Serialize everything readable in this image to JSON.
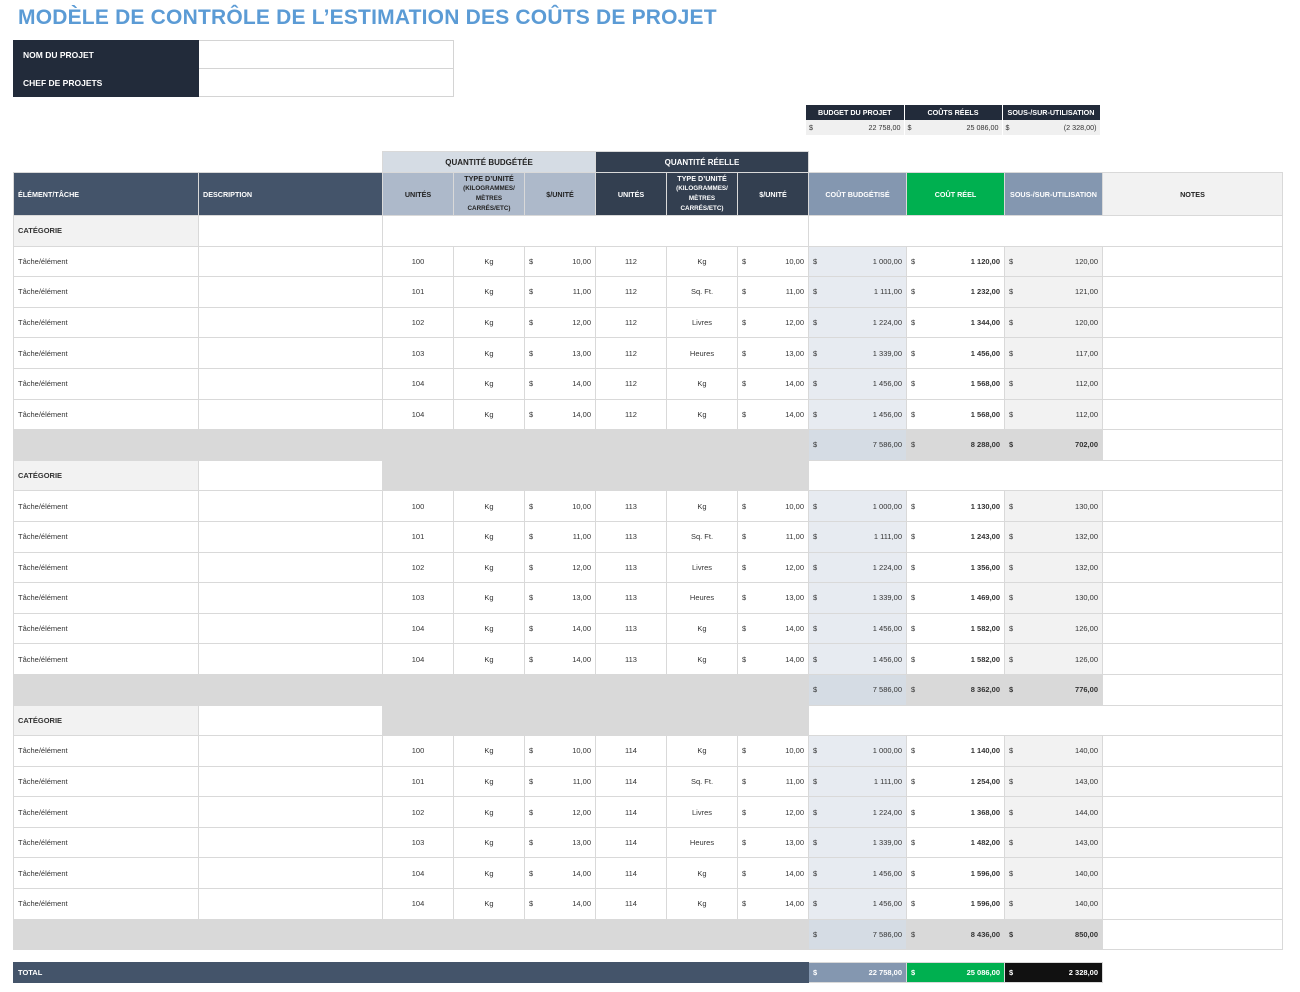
{
  "title": "MODÈLE DE CONTRÔLE DE L’ESTIMATION DES COÛTS DE PROJET",
  "project": {
    "name_label": "NOM DU PROJET",
    "name_value": "",
    "manager_label": "CHEF DE PROJETS",
    "manager_value": ""
  },
  "summary": {
    "headers": [
      "BUDGET DU PROJET",
      "COÛTS RÉELS",
      "SOUS-/SUR-UTILISATION"
    ],
    "currency": "$",
    "values": [
      "22 758,00",
      "25 086,00",
      "(2 328,00)"
    ]
  },
  "groups": {
    "budgeted": "QUANTITÉ BUDGÉTÉE",
    "actual": "QUANTITÉ RÉELLE"
  },
  "headers": {
    "item": "ÉLÉMENT/TÂCHE",
    "description": "DESCRIPTION",
    "units": "UNITÉS",
    "unit_type": "TYPE D’UNITÉ",
    "unit_type_sub": "(KILOGRAMMES/ MÈTRES CARRÉS/ETC)",
    "per_unit": "$/UNITÉ",
    "budget_cost": "COÛT BUDGÉTISÉ",
    "actual_cost": "COÛT RÉEL",
    "variance": "SOUS-/SUR-UTILISATION",
    "notes": "NOTES"
  },
  "currency_symbol": "$",
  "categories": [
    {
      "label": "CATÉGORIE",
      "rows": [
        {
          "item": "Tâche/élément",
          "b_units": "100",
          "b_type": "Kg",
          "b_price": "10,00",
          "a_units": "112",
          "a_type": "Kg",
          "a_price": "10,00",
          "budget": "1 000,00",
          "actual": "1 120,00",
          "variance": "120,00"
        },
        {
          "item": "Tâche/élément",
          "b_units": "101",
          "b_type": "Kg",
          "b_price": "11,00",
          "a_units": "112",
          "a_type": "Sq. Ft.",
          "a_price": "11,00",
          "budget": "1 111,00",
          "actual": "1 232,00",
          "variance": "121,00"
        },
        {
          "item": "Tâche/élément",
          "b_units": "102",
          "b_type": "Kg",
          "b_price": "12,00",
          "a_units": "112",
          "a_type": "Livres",
          "a_price": "12,00",
          "budget": "1 224,00",
          "actual": "1 344,00",
          "variance": "120,00"
        },
        {
          "item": "Tâche/élément",
          "b_units": "103",
          "b_type": "Kg",
          "b_price": "13,00",
          "a_units": "112",
          "a_type": "Heures",
          "a_price": "13,00",
          "budget": "1 339,00",
          "actual": "1 456,00",
          "variance": "117,00"
        },
        {
          "item": "Tâche/élément",
          "b_units": "104",
          "b_type": "Kg",
          "b_price": "14,00",
          "a_units": "112",
          "a_type": "Kg",
          "a_price": "14,00",
          "budget": "1 456,00",
          "actual": "1 568,00",
          "variance": "112,00"
        },
        {
          "item": "Tâche/élément",
          "b_units": "104",
          "b_type": "Kg",
          "b_price": "14,00",
          "a_units": "112",
          "a_type": "Kg",
          "a_price": "14,00",
          "budget": "1 456,00",
          "actual": "1 568,00",
          "variance": "112,00"
        }
      ],
      "subtotal": {
        "budget": "7 586,00",
        "actual": "8 288,00",
        "variance": "702,00"
      }
    },
    {
      "label": "CATÉGORIE",
      "rows": [
        {
          "item": "Tâche/élément",
          "b_units": "100",
          "b_type": "Kg",
          "b_price": "10,00",
          "a_units": "113",
          "a_type": "Kg",
          "a_price": "10,00",
          "budget": "1 000,00",
          "actual": "1 130,00",
          "variance": "130,00"
        },
        {
          "item": "Tâche/élément",
          "b_units": "101",
          "b_type": "Kg",
          "b_price": "11,00",
          "a_units": "113",
          "a_type": "Sq. Ft.",
          "a_price": "11,00",
          "budget": "1 111,00",
          "actual": "1 243,00",
          "variance": "132,00"
        },
        {
          "item": "Tâche/élément",
          "b_units": "102",
          "b_type": "Kg",
          "b_price": "12,00",
          "a_units": "113",
          "a_type": "Livres",
          "a_price": "12,00",
          "budget": "1 224,00",
          "actual": "1 356,00",
          "variance": "132,00"
        },
        {
          "item": "Tâche/élément",
          "b_units": "103",
          "b_type": "Kg",
          "b_price": "13,00",
          "a_units": "113",
          "a_type": "Heures",
          "a_price": "13,00",
          "budget": "1 339,00",
          "actual": "1 469,00",
          "variance": "130,00"
        },
        {
          "item": "Tâche/élément",
          "b_units": "104",
          "b_type": "Kg",
          "b_price": "14,00",
          "a_units": "113",
          "a_type": "Kg",
          "a_price": "14,00",
          "budget": "1 456,00",
          "actual": "1 582,00",
          "variance": "126,00"
        },
        {
          "item": "Tâche/élément",
          "b_units": "104",
          "b_type": "Kg",
          "b_price": "14,00",
          "a_units": "113",
          "a_type": "Kg",
          "a_price": "14,00",
          "budget": "1 456,00",
          "actual": "1 582,00",
          "variance": "126,00"
        }
      ],
      "subtotal": {
        "budget": "7 586,00",
        "actual": "8 362,00",
        "variance": "776,00"
      }
    },
    {
      "label": "CATÉGORIE",
      "rows": [
        {
          "item": "Tâche/élément",
          "b_units": "100",
          "b_type": "Kg",
          "b_price": "10,00",
          "a_units": "114",
          "a_type": "Kg",
          "a_price": "10,00",
          "budget": "1 000,00",
          "actual": "1 140,00",
          "variance": "140,00"
        },
        {
          "item": "Tâche/élément",
          "b_units": "101",
          "b_type": "Kg",
          "b_price": "11,00",
          "a_units": "114",
          "a_type": "Sq. Ft.",
          "a_price": "11,00",
          "budget": "1 111,00",
          "actual": "1 254,00",
          "variance": "143,00"
        },
        {
          "item": "Tâche/élément",
          "b_units": "102",
          "b_type": "Kg",
          "b_price": "12,00",
          "a_units": "114",
          "a_type": "Livres",
          "a_price": "12,00",
          "budget": "1 224,00",
          "actual": "1 368,00",
          "variance": "144,00"
        },
        {
          "item": "Tâche/élément",
          "b_units": "103",
          "b_type": "Kg",
          "b_price": "13,00",
          "a_units": "114",
          "a_type": "Heures",
          "a_price": "13,00",
          "budget": "1 339,00",
          "actual": "1 482,00",
          "variance": "143,00"
        },
        {
          "item": "Tâche/élément",
          "b_units": "104",
          "b_type": "Kg",
          "b_price": "14,00",
          "a_units": "114",
          "a_type": "Kg",
          "a_price": "14,00",
          "budget": "1 456,00",
          "actual": "1 596,00",
          "variance": "140,00"
        },
        {
          "item": "Tâche/élément",
          "b_units": "104",
          "b_type": "Kg",
          "b_price": "14,00",
          "a_units": "114",
          "a_type": "Kg",
          "a_price": "14,00",
          "budget": "1 456,00",
          "actual": "1 596,00",
          "variance": "140,00"
        }
      ],
      "subtotal": {
        "budget": "7 586,00",
        "actual": "8 436,00",
        "variance": "850,00"
      }
    }
  ],
  "total": {
    "label": "TOTAL",
    "budget": "22 758,00",
    "actual": "25 086,00",
    "variance": "2 328,00"
  }
}
